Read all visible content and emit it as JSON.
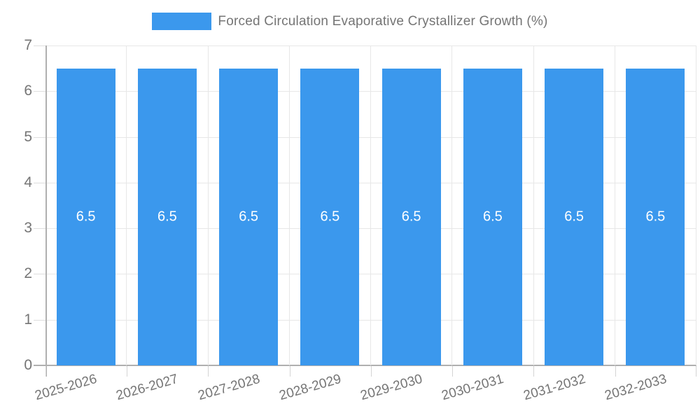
{
  "legend": {
    "label": "Forced Circulation Evaporative Crystallizer Growth (%)"
  },
  "chart_data": {
    "type": "bar",
    "title": "Forced Circulation Evaporative Crystallizer Growth (%)",
    "categories": [
      "2025-2026",
      "2026-2027",
      "2027-2028",
      "2028-2029",
      "2029-2030",
      "2030-2031",
      "2031-2032",
      "2032-2033"
    ],
    "series": [
      {
        "name": "Forced Circulation Evaporative Crystallizer Growth (%)",
        "color": "#3b98ed",
        "values": [
          6.5,
          6.5,
          6.5,
          6.5,
          6.5,
          6.5,
          6.5,
          6.5
        ]
      }
    ],
    "xlabel": "",
    "ylabel": "",
    "ylim": [
      0,
      7
    ],
    "y_ticks": [
      "7",
      "6",
      "5",
      "4",
      "3",
      "2",
      "1",
      "0"
    ],
    "grid": true,
    "legend_position": "top",
    "value_labels_inside_bars": true
  },
  "colors": {
    "bar": "#3b98ed",
    "text": "#757575",
    "axis_line": "#b0b0b0",
    "gridline": "#e7e7e7",
    "bar_value_text": "#ffffff"
  }
}
